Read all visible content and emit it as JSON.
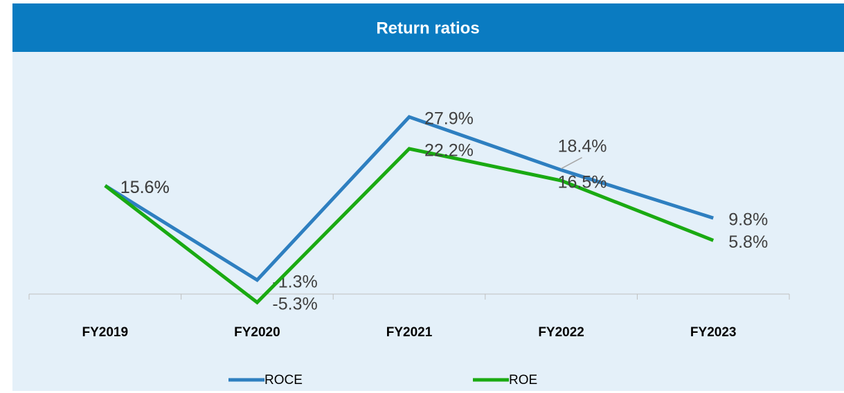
{
  "chart_data": {
    "type": "line",
    "title": "Return ratios",
    "categories": [
      "FY2019",
      "FY2020",
      "FY2021",
      "FY2022",
      "FY2023"
    ],
    "series": [
      {
        "name": "ROCE",
        "color": "#2e7fc0",
        "values": [
          15.6,
          -1.3,
          27.9,
          18.4,
          9.8
        ],
        "value_labels": [
          "15.6%",
          "-1.3%",
          "27.9%",
          "18.4%",
          "9.8%"
        ]
      },
      {
        "name": "ROE",
        "color": "#1aaa12",
        "values": [
          15.6,
          -5.3,
          22.2,
          16.5,
          5.8
        ],
        "value_labels": [
          "15.6%",
          "-5.3%",
          "22.2%",
          "16.5%",
          "5.8%"
        ]
      }
    ],
    "legend": "bottom"
  }
}
